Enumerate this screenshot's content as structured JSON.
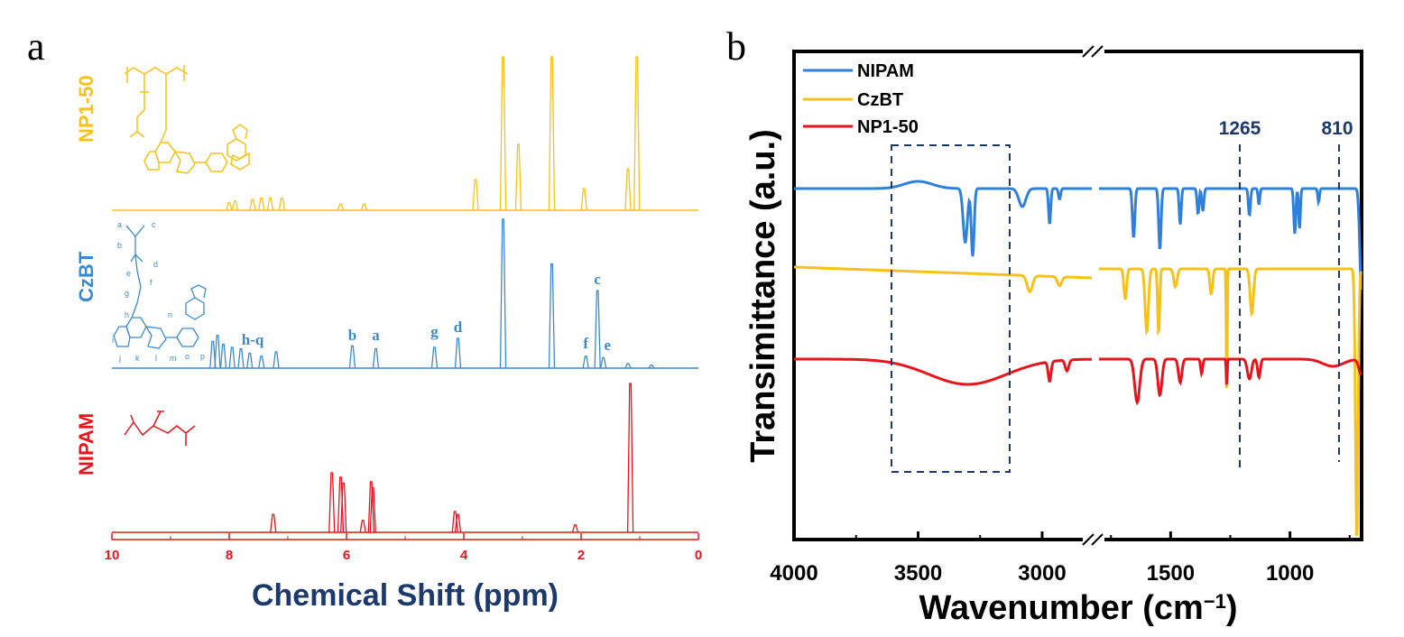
{
  "panel_a": {
    "label": "a",
    "xlabel": "Chemical Shift (ppm)",
    "tick_labels": [
      "10",
      "8",
      "6",
      "4",
      "2",
      "0"
    ],
    "colors": {
      "np": "#f5c11a",
      "czbt": "#3b8bcc",
      "nipam": "#e8141c",
      "xlabel": "#1b3a6b"
    }
  },
  "panel_b": {
    "label": "b",
    "ylabel": "Transimittance (a.u.)",
    "xlabel_main": "Wavenumber (cm",
    "xlabel_sup": "−1",
    "xlabel_end": ")",
    "tick_labels": [
      "4000",
      "3500",
      "3000",
      "1500",
      "1000"
    ],
    "markers": [
      "1265",
      "810"
    ],
    "colors": {
      "nipam": "#2f80dc",
      "czbt": "#f5c11a",
      "np": "#e8141c",
      "dash": "#1b3a6b"
    }
  },
  "chart_data": [
    {
      "type": "line",
      "title": "",
      "xlabel": "Chemical Shift (ppm)",
      "ylabel": "",
      "xlim": [
        10,
        0
      ],
      "x_ticks": [
        10,
        8,
        6,
        4,
        2,
        0
      ],
      "grid": false,
      "series": [
        {
          "name": "NP1-50",
          "color": "#f5c11a",
          "peaks": [
            [
              8.0,
              0.05
            ],
            [
              7.9,
              0.06
            ],
            [
              7.6,
              0.07
            ],
            [
              7.45,
              0.08
            ],
            [
              7.3,
              0.08
            ],
            [
              7.1,
              0.08
            ],
            [
              6.1,
              0.04
            ],
            [
              5.7,
              0.04
            ],
            [
              3.8,
              0.2
            ],
            [
              3.33,
              1.0
            ],
            [
              3.07,
              0.43
            ],
            [
              2.5,
              1.0
            ],
            [
              1.95,
              0.14
            ],
            [
              1.2,
              0.27
            ],
            [
              1.05,
              1.0
            ]
          ],
          "annotations": []
        },
        {
          "name": "CzBT",
          "color": "#3b8bcc",
          "peaks": [
            [
              8.28,
              0.18
            ],
            [
              8.2,
              0.22
            ],
            [
              8.1,
              0.16
            ],
            [
              7.95,
              0.14
            ],
            [
              7.8,
              0.13
            ],
            [
              7.65,
              0.1
            ],
            [
              7.45,
              0.08
            ],
            [
              7.2,
              0.11
            ],
            [
              5.9,
              0.15
            ],
            [
              5.5,
              0.13
            ],
            [
              4.5,
              0.14
            ],
            [
              4.1,
              0.2
            ],
            [
              3.33,
              1.0
            ],
            [
              2.5,
              0.7
            ],
            [
              1.92,
              0.08
            ],
            [
              1.72,
              0.52
            ],
            [
              1.62,
              0.07
            ],
            [
              1.2,
              0.03
            ],
            [
              0.8,
              0.02
            ]
          ],
          "annotations": [
            "h-q",
            "b",
            "a",
            "g",
            "d",
            "f",
            "c",
            "e"
          ]
        },
        {
          "name": "NIPAM",
          "color": "#e8141c",
          "peaks": [
            [
              7.25,
              0.12
            ],
            [
              6.25,
              0.4
            ],
            [
              6.1,
              0.37
            ],
            [
              6.05,
              0.33
            ],
            [
              5.72,
              0.08
            ],
            [
              5.58,
              0.34
            ],
            [
              5.55,
              0.3
            ],
            [
              4.15,
              0.14
            ],
            [
              4.1,
              0.12
            ],
            [
              2.1,
              0.05
            ],
            [
              1.16,
              1.0
            ]
          ],
          "annotations": []
        }
      ]
    },
    {
      "type": "line",
      "title": "",
      "xlabel": "Wavenumber (cm−1)",
      "ylabel": "Transimittance (a.u.)",
      "xlim": [
        4000,
        700
      ],
      "x_ticks": [
        4000,
        3500,
        3000,
        1500,
        1000
      ],
      "axis_break": [
        2800,
        1800
      ],
      "legend": "top-left",
      "grid": false,
      "marked_lines": [
        1265,
        810
      ],
      "highlight_region": [
        3550,
        3020
      ],
      "series": [
        {
          "name": "NIPAM",
          "color": "#2f80dc"
        },
        {
          "name": "CzBT",
          "color": "#f5c11a"
        },
        {
          "name": "NP1-50",
          "color": "#e8141c"
        }
      ]
    }
  ]
}
